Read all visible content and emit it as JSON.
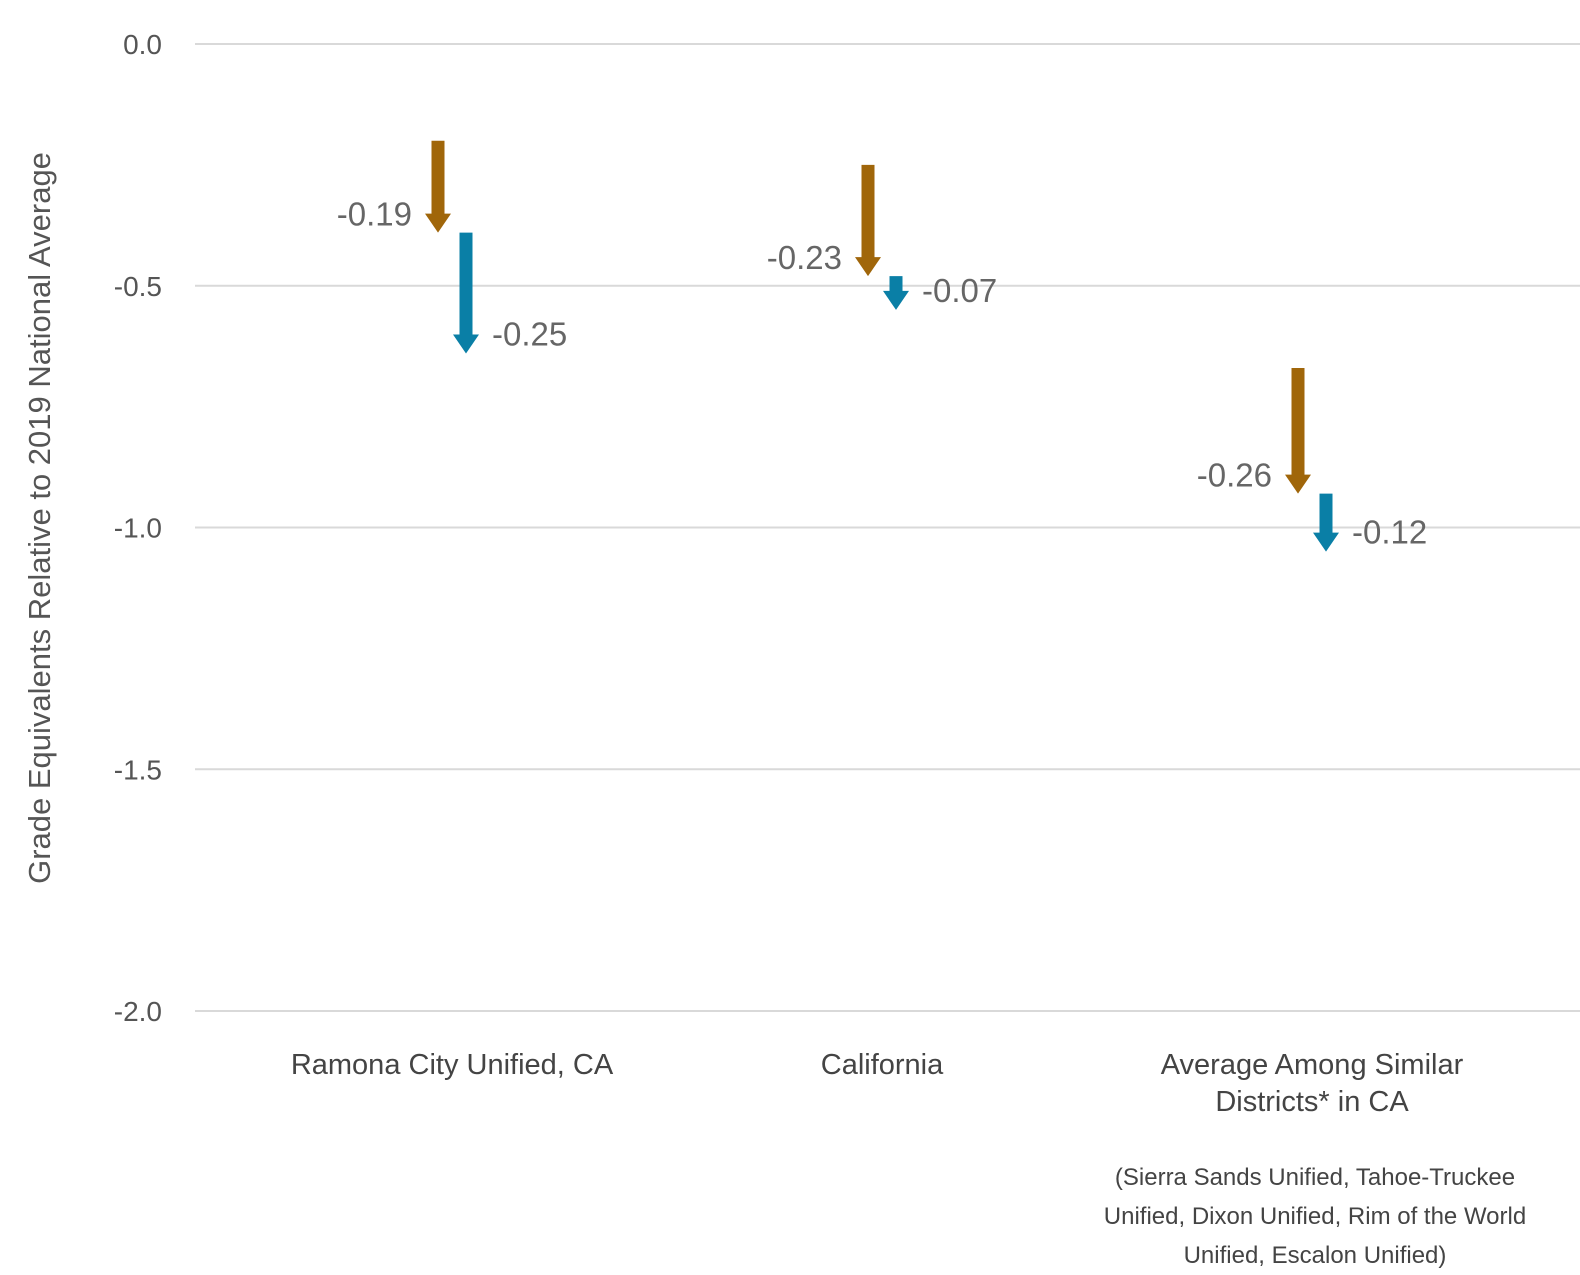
{
  "chart_data": {
    "type": "arrow",
    "ylabel": "Grade Equivalents Relative to 2019 National Average",
    "ylim": [
      -2.0,
      0.0
    ],
    "yticks": [
      "0.0",
      "-0.5",
      "-1.0",
      "-1.5",
      "-2.0"
    ],
    "ytick_values": [
      0.0,
      -0.5,
      -1.0,
      -1.5,
      -2.0
    ],
    "grid": true,
    "colors": {
      "first": "#A0660A",
      "second": "#0A7FA6",
      "grid": "#d9d9d9"
    },
    "categories": [
      {
        "label_lines": [
          "Ramona City Unified, CA"
        ],
        "note_lines": []
      },
      {
        "label_lines": [
          "California"
        ],
        "note_lines": []
      },
      {
        "label_lines": [
          "Average Among Similar",
          "Districts* in CA"
        ],
        "note_lines": [
          "(Sierra Sands Unified, Tahoe-Truckee",
          "Unified, Dixon Unified, Rim of the World",
          "Unified, Escalon Unified)"
        ]
      }
    ],
    "series": [
      {
        "color": "#A0660A",
        "points": [
          {
            "start": -0.2,
            "end": -0.39,
            "label": "-0.19"
          },
          {
            "start": -0.25,
            "end": -0.48,
            "label": "-0.23"
          },
          {
            "start": -0.67,
            "end": -0.93,
            "label": "-0.26"
          }
        ]
      },
      {
        "color": "#0A7FA6",
        "points": [
          {
            "start": -0.39,
            "end": -0.64,
            "label": "-0.25"
          },
          {
            "start": -0.48,
            "end": -0.55,
            "label": "-0.07"
          },
          {
            "start": -0.93,
            "end": -1.05,
            "label": "-0.12"
          }
        ]
      }
    ]
  }
}
